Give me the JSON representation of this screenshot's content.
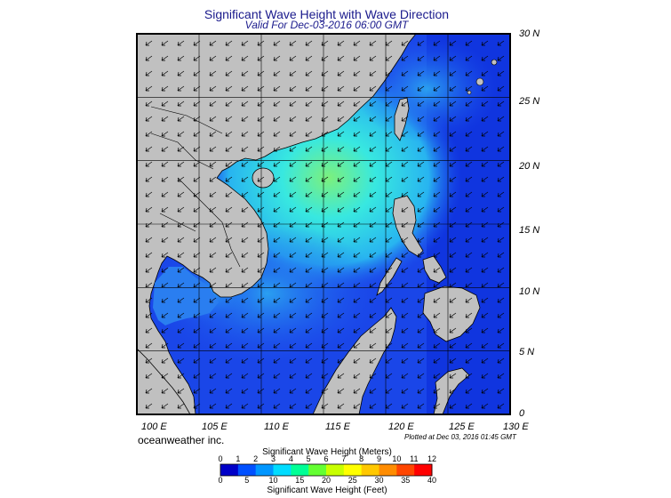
{
  "title": "Significant Wave Height with Wave Direction",
  "subtitle": "Valid For Dec-03-2016 06:00 GMT",
  "longitude_labels": [
    "100 E",
    "105 E",
    "110 E",
    "115 E",
    "120 E",
    "125 E",
    "130 E"
  ],
  "latitude_labels": [
    "30 N",
    "25 N",
    "20 N",
    "15 N",
    "10 N",
    "5 N",
    "0"
  ],
  "company": "oceanweather inc.",
  "plotted": "Plotted at Dec 03, 2016 01:45 GMT",
  "colorbar": {
    "meters_title": "Significant Wave Height (Meters)",
    "feet_title": "Significant Wave Height (Feet)",
    "meters_ticks": [
      "0",
      "1",
      "2",
      "3",
      "4",
      "5",
      "6",
      "7",
      "8",
      "9",
      "10",
      "11",
      "12"
    ],
    "feet_ticks": [
      "0",
      "5",
      "10",
      "15",
      "20",
      "25",
      "30",
      "35",
      "40"
    ],
    "colors": [
      "#0000c8",
      "#0050ff",
      "#0096ff",
      "#00dcff",
      "#00ff96",
      "#64ff32",
      "#c8ff00",
      "#ffff00",
      "#ffc800",
      "#ff8c00",
      "#ff4600",
      "#ff0000"
    ]
  },
  "colors": {
    "land": "#c0c0c0",
    "deep_ocean": "#0a14d2",
    "ocean": "#1e50f0",
    "swell": "#38c8f0",
    "peak": "#7cf07c",
    "title": "#1a1a8c"
  },
  "map_data": {
    "lon_range": [
      100,
      130
    ],
    "lat_range": [
      0,
      30
    ],
    "grid_step_degrees": 5,
    "wave_direction": "from northeast"
  }
}
